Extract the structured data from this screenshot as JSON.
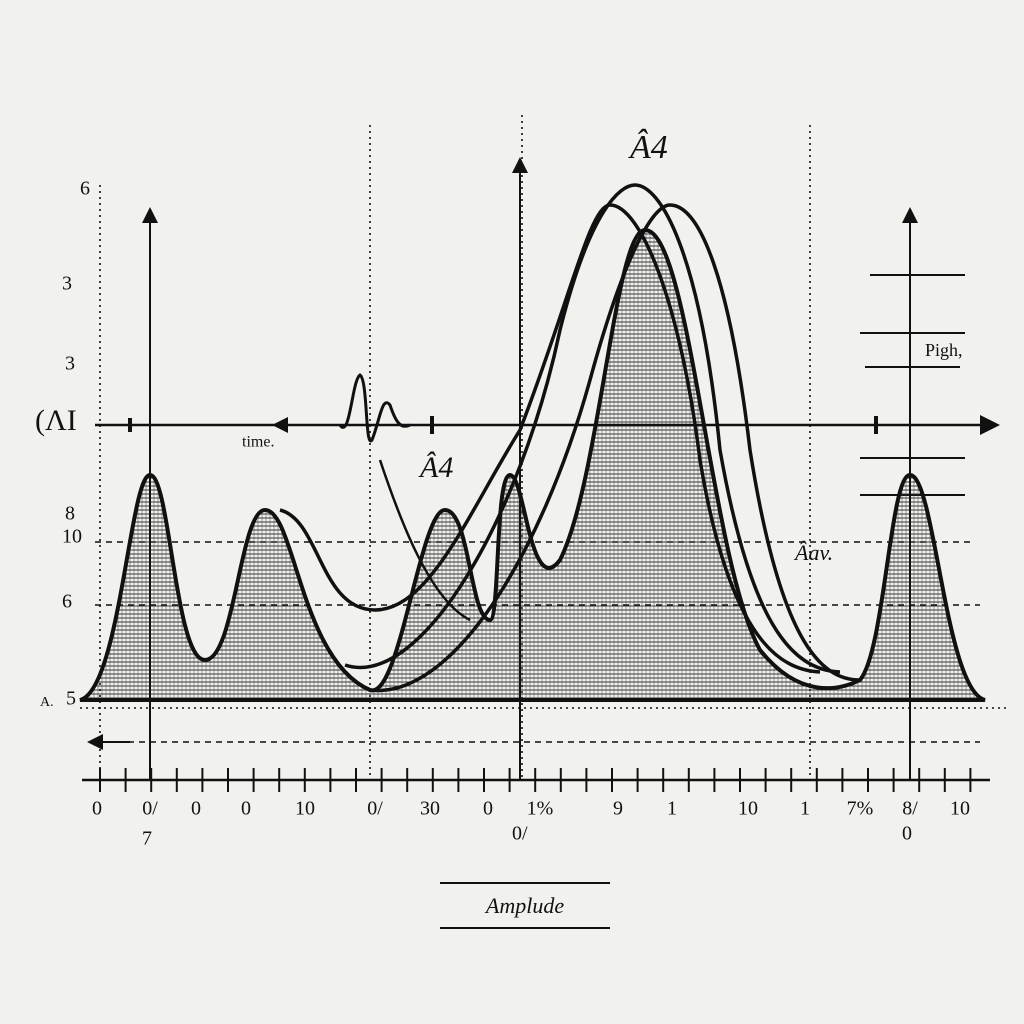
{
  "header_marks": {
    "top": "Â4",
    "middle": "Â4",
    "right": "Âav."
  },
  "left_labels": [
    "6",
    "3",
    "3",
    "8",
    "10",
    "6",
    "5"
  ],
  "left_symbol": "(ΛΙ",
  "axis_mark": "A.",
  "time_label": "time.",
  "high_label": "Pigh,",
  "x_labels": [
    "0",
    "0/",
    "0",
    "0",
    "10",
    "0/",
    "30",
    "0",
    "1%",
    "9",
    "1",
    "10",
    "1",
    "7%",
    "8/",
    "10"
  ],
  "x_sub_labels": [
    "7",
    "0/",
    "0"
  ],
  "caption": "Amplude"
}
